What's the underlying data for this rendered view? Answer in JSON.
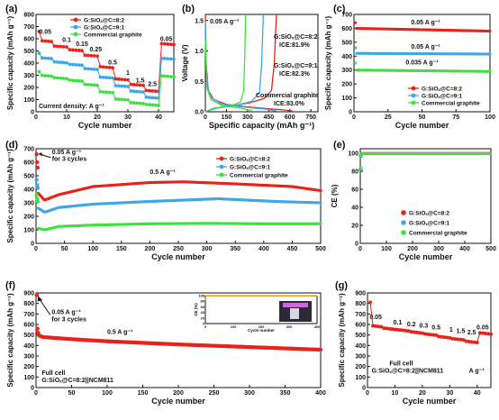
{
  "colors": {
    "red": "#e8231c",
    "blue": "#3ea7e8",
    "green": "#3ee23e",
    "orange": "#f0a020",
    "dark": "#111111"
  },
  "watermark": "",
  "chart_data": [
    {
      "id": "a",
      "panel_label": "(a)",
      "type": "scatter",
      "xlabel": "Cycle number",
      "ylabel": "Specific capacity (mAh g⁻¹)",
      "xlim": [
        0,
        45
      ],
      "ylim": [
        0,
        800
      ],
      "xticks": [
        0,
        10,
        20,
        30,
        40
      ],
      "yticks": [
        0,
        100,
        200,
        300,
        400,
        500,
        600,
        700,
        800
      ],
      "legend_location": "top-center",
      "footer_text": "Current density: A g⁻¹",
      "rate_labels": [
        {
          "text": "0.05",
          "x": 3,
          "y": 640
        },
        {
          "text": "0.1",
          "x": 10,
          "y": 575
        },
        {
          "text": "0.15",
          "x": 15,
          "y": 540
        },
        {
          "text": "0.25",
          "x": 19.5,
          "y": 495
        },
        {
          "text": "0.5",
          "x": 25,
          "y": 390
        },
        {
          "text": "1",
          "x": 30,
          "y": 305
        },
        {
          "text": "1.5",
          "x": 34,
          "y": 240
        },
        {
          "text": "2.5",
          "x": 38,
          "y": 210
        },
        {
          "text": "0.05",
          "x": 42.5,
          "y": 580
        }
      ],
      "steps_x": [
        [
          1,
          5
        ],
        [
          6,
          10
        ],
        [
          11,
          15
        ],
        [
          16,
          20
        ],
        [
          21,
          25
        ],
        [
          26,
          30
        ],
        [
          31,
          35
        ],
        [
          36,
          40
        ],
        [
          41,
          45
        ]
      ],
      "series": [
        {
          "name": "G:SiOₓ@C=8:2",
          "color_key": "red",
          "first": 660,
          "levels": [
            585,
            540,
            510,
            465,
            370,
            270,
            225,
            175,
            560
          ]
        },
        {
          "name": "G:SiOₓ@C=9:1",
          "color_key": "blue",
          "first": 480,
          "levels": [
            445,
            410,
            390,
            355,
            285,
            215,
            170,
            120,
            440
          ]
        },
        {
          "name": "Commercial graphite",
          "color_key": "green",
          "first": 330,
          "levels": [
            300,
            280,
            260,
            225,
            165,
            105,
            75,
            60,
            295
          ]
        }
      ]
    },
    {
      "id": "b",
      "panel_label": "(b)",
      "type": "line",
      "xlabel": "Specific capacity (mAh g⁻¹)",
      "ylabel": "Voltage (V)",
      "xlim": [
        0,
        800
      ],
      "ylim": [
        0,
        1.6
      ],
      "xticks": [
        0,
        150,
        300,
        450,
        600,
        750
      ],
      "yticks": [
        0.0,
        0.5,
        1.0,
        1.5
      ],
      "rate_text": "0.05 A g⁻¹",
      "series": [
        {
          "name": "G:SiOₓ@C=8:2",
          "ice": "ICE:81.9%",
          "color_key": "red",
          "discharge": [
            [
              0,
              1.6
            ],
            [
              6,
              0.8
            ],
            [
              20,
              0.35
            ],
            [
              60,
              0.2
            ],
            [
              150,
              0.12
            ],
            [
              300,
              0.08
            ],
            [
              450,
              0.05
            ],
            [
              560,
              0.03
            ],
            [
              620,
              0.01
            ]
          ],
          "charge": [
            [
              0,
              0.0
            ],
            [
              50,
              0.05
            ],
            [
              200,
              0.1
            ],
            [
              320,
              0.15
            ],
            [
              420,
              0.22
            ],
            [
              470,
              0.35
            ],
            [
              490,
              0.8
            ],
            [
              505,
              1.6
            ]
          ]
        },
        {
          "name": "G:SiOₓ@C=9:1",
          "ice": "ICE:82.3%",
          "color_key": "blue",
          "discharge": [
            [
              0,
              1.5
            ],
            [
              8,
              0.6
            ],
            [
              30,
              0.25
            ],
            [
              120,
              0.12
            ],
            [
              300,
              0.07
            ],
            [
              440,
              0.04
            ],
            [
              510,
              0.01
            ]
          ],
          "charge": [
            [
              0,
              0.0
            ],
            [
              80,
              0.06
            ],
            [
              220,
              0.11
            ],
            [
              330,
              0.17
            ],
            [
              385,
              0.32
            ],
            [
              400,
              0.8
            ],
            [
              412,
              1.6
            ]
          ]
        },
        {
          "name": "Commercial graphite",
          "ice": "ICE:83.0%",
          "color_key": "green",
          "discharge": [
            [
              0,
              1.2
            ],
            [
              10,
              0.4
            ],
            [
              40,
              0.2
            ],
            [
              120,
              0.1
            ],
            [
              250,
              0.06
            ],
            [
              330,
              0.02
            ]
          ],
          "charge": [
            [
              0,
              0.0
            ],
            [
              60,
              0.06
            ],
            [
              180,
              0.1
            ],
            [
              250,
              0.16
            ],
            [
              272,
              0.35
            ],
            [
              280,
              0.9
            ],
            [
              286,
              1.6
            ]
          ]
        }
      ]
    },
    {
      "id": "c",
      "panel_label": "(c)",
      "type": "scatter",
      "xlabel": "Cycle number",
      "ylabel": "Specific capacity (mAh g⁻¹)",
      "xlim": [
        0,
        100
      ],
      "ylim": [
        0,
        700
      ],
      "xticks": [
        0,
        25,
        50,
        75,
        100
      ],
      "yticks": [
        0,
        100,
        200,
        300,
        400,
        500,
        600,
        700
      ],
      "legend_location": "lower-right",
      "annotations": [
        {
          "text": "0.05 A g⁻¹",
          "x": 42,
          "y": 630
        },
        {
          "text": "0.05 A g⁻¹",
          "x": 42,
          "y": 455
        },
        {
          "text": "0.035 A g⁻¹",
          "x": 38,
          "y": 340
        }
      ],
      "series": [
        {
          "name": "G:SiOₓ@C=8:2",
          "color_key": "red",
          "first": 640,
          "start": 600,
          "end": 580
        },
        {
          "name": "G:SiOₓ@C=9:1",
          "color_key": "blue",
          "first": 460,
          "start": 420,
          "end": 415
        },
        {
          "name": "Commercial graphite",
          "color_key": "green",
          "first": 350,
          "start": 300,
          "end": 290
        }
      ]
    },
    {
      "id": "d",
      "panel_label": "(d)",
      "type": "scatter",
      "xlabel": "Cycle number",
      "ylabel": "Specific capacity (mAh g⁻¹)",
      "xlim": [
        0,
        500
      ],
      "ylim": [
        0,
        700
      ],
      "xticks": [
        0,
        50,
        100,
        150,
        200,
        250,
        300,
        350,
        400,
        450,
        500
      ],
      "yticks": [
        0,
        100,
        200,
        300,
        400,
        500,
        600,
        700
      ],
      "legend_location": "top-right",
      "annotations": [
        {
          "text": "0.05 A g⁻¹",
          "x": 28,
          "y": 660
        },
        {
          "text": "for 3 cycles",
          "x": 28,
          "y": 610
        },
        {
          "text": "0.5 A g⁻¹",
          "x": 200,
          "y": 515
        }
      ],
      "series": [
        {
          "name": "G:SiOₓ@C=8:2",
          "color_key": "red",
          "initial": [
            660,
            600,
            560
          ],
          "curve": [
            [
              4,
              370
            ],
            [
              15,
              320
            ],
            [
              40,
              360
            ],
            [
              100,
              420
            ],
            [
              200,
              450
            ],
            [
              260,
              455
            ],
            [
              350,
              440
            ],
            [
              450,
              420
            ],
            [
              500,
              390
            ]
          ]
        },
        {
          "name": "G:SiOₓ@C=9:1",
          "color_key": "blue",
          "initial": [
            470,
            430,
            410
          ],
          "curve": [
            [
              4,
              260
            ],
            [
              15,
              230
            ],
            [
              40,
              265
            ],
            [
              100,
              290
            ],
            [
              200,
              310
            ],
            [
              320,
              330
            ],
            [
              420,
              310
            ],
            [
              500,
              300
            ]
          ]
        },
        {
          "name": "Commercial graphite",
          "color_key": "green",
          "initial": [
            360,
            330,
            310
          ],
          "curve": [
            [
              4,
              110
            ],
            [
              15,
              100
            ],
            [
              40,
              125
            ],
            [
              100,
              135
            ],
            [
              200,
              145
            ],
            [
              300,
              148
            ],
            [
              400,
              145
            ],
            [
              500,
              145
            ]
          ]
        }
      ]
    },
    {
      "id": "e",
      "panel_label": "(e)",
      "type": "scatter",
      "xlabel": "Cycle number",
      "ylabel": "CE (%)",
      "xlim": [
        0,
        500
      ],
      "ylim": [
        0,
        105
      ],
      "xticks": [
        0,
        100,
        200,
        300,
        400,
        500
      ],
      "yticks": [
        0,
        20,
        40,
        60,
        80,
        100
      ],
      "legend_location": "lower-right",
      "series": [
        {
          "name": "G:SiOₓ@C=8:2",
          "color_key": "red",
          "first": [
            81.9,
            97.5
          ],
          "rest": 99.8
        },
        {
          "name": "G:SiOₓ@C=9:1",
          "color_key": "blue",
          "first": [
            82.3,
            97
          ],
          "rest": 99.7
        },
        {
          "name": "Commercial graphite",
          "color_key": "green",
          "first": [
            83.0,
            98
          ],
          "rest": 99.6
        }
      ]
    },
    {
      "id": "f",
      "panel_label": "(f)",
      "type": "scatter",
      "xlabel": "Cycle number",
      "ylabel": "Specific capacity (mAh g⁻¹)",
      "xlim": [
        0,
        400
      ],
      "ylim": [
        0,
        900
      ],
      "xticks": [
        0,
        50,
        100,
        150,
        200,
        250,
        300,
        350,
        400
      ],
      "yticks": [
        0,
        100,
        200,
        300,
        400,
        500,
        600,
        700,
        800,
        900
      ],
      "annotations": [
        {
          "text": "0.05 A g⁻¹",
          "x": 22,
          "y": 700
        },
        {
          "text": "for 3 cycles",
          "x": 22,
          "y": 630
        },
        {
          "text": "0.5 A g⁻¹",
          "x": 100,
          "y": 510
        },
        {
          "text": "Full cell",
          "x": 8,
          "y": 120
        },
        {
          "text": "G:SiOₓ@C=8:2||NCM811",
          "x": 8,
          "y": 50
        }
      ],
      "series": [
        {
          "name": "G:SiOₓ@C=8:2||NCM811",
          "color_key": "red",
          "initial": [
            880,
            560,
            520
          ],
          "curve": [
            [
              4,
              495
            ],
            [
              10,
              480
            ],
            [
              50,
              460
            ],
            [
              100,
              440
            ],
            [
              200,
              410
            ],
            [
              300,
              385
            ],
            [
              400,
              360
            ]
          ]
        }
      ],
      "inset": {
        "type": "scatter",
        "ylabel": "CE (%)",
        "xlabel": "Cycle number",
        "xlim": [
          0,
          400
        ],
        "ylim": [
          0,
          100
        ],
        "xticks": [
          0,
          100,
          200,
          300,
          400
        ],
        "yticks": [
          0,
          20,
          40,
          60,
          80,
          100
        ],
        "series": [
          {
            "name": "CE",
            "color_key": "orange",
            "first": 88,
            "rest": 99.5
          }
        ]
      }
    },
    {
      "id": "g",
      "panel_label": "(g)",
      "type": "scatter",
      "xlabel": "Cycle number",
      "ylabel": "Specific capacity (mAh g⁻¹)",
      "xlim": [
        0,
        45
      ],
      "ylim": [
        0,
        900
      ],
      "xticks": [
        0,
        10,
        20,
        30,
        40
      ],
      "yticks": [
        0,
        100,
        200,
        300,
        400,
        500,
        600,
        700,
        800,
        900
      ],
      "annotations": [
        {
          "text": "Full cell",
          "x": 8,
          "y": 210
        },
        {
          "text": "G:SiOₓ@C=8:2||NCM811",
          "x": 1.5,
          "y": 140
        },
        {
          "text": "A g⁻¹",
          "x": 37,
          "y": 140
        }
      ],
      "rate_labels": [
        {
          "text": "0.05",
          "x": 3,
          "y": 650
        },
        {
          "text": "0.1",
          "x": 11,
          "y": 600
        },
        {
          "text": "0.2",
          "x": 16,
          "y": 585
        },
        {
          "text": "0.3",
          "x": 20.5,
          "y": 570
        },
        {
          "text": "0.5",
          "x": 25,
          "y": 555
        },
        {
          "text": "1",
          "x": 30.5,
          "y": 530
        },
        {
          "text": "1.5",
          "x": 34,
          "y": 520
        },
        {
          "text": "2.5",
          "x": 38,
          "y": 505
        },
        {
          "text": "0.05",
          "x": 42,
          "y": 555
        }
      ],
      "steps_x": [
        [
          1,
          5
        ],
        [
          6,
          10
        ],
        [
          11,
          15
        ],
        [
          16,
          20
        ],
        [
          21,
          25
        ],
        [
          26,
          30
        ],
        [
          31,
          35
        ],
        [
          36,
          40
        ],
        [
          41,
          45
        ]
      ],
      "series": [
        {
          "name": "G:SiOₓ@C=8:2||NCM811",
          "color_key": "red",
          "first": 810,
          "levels": [
            590,
            565,
            550,
            530,
            510,
            485,
            465,
            440,
            520
          ]
        }
      ]
    }
  ]
}
